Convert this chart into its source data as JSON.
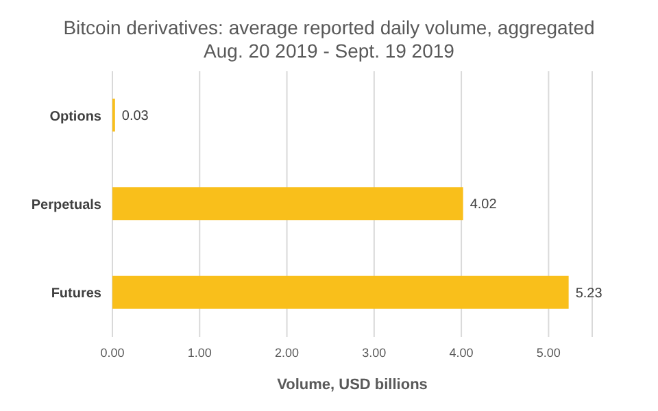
{
  "chart_data": {
    "type": "bar",
    "orientation": "horizontal",
    "title": "Bitcoin derivatives: average reported daily volume, aggregated",
    "subtitle": "Aug. 20 2019 - Sept. 19 2019",
    "xlabel": "Volume, USD billions",
    "categories": [
      "Options",
      "Perpetuals",
      "Futures"
    ],
    "values": [
      0.03,
      4.02,
      5.23
    ],
    "color": "#f9bf1b",
    "data_labels": true,
    "xlim": [
      0,
      5.5
    ],
    "xticks": [
      {
        "value": 0,
        "label": "0.00"
      },
      {
        "value": 1,
        "label": "1.00"
      },
      {
        "value": 2,
        "label": "2.00"
      },
      {
        "value": 3,
        "label": "3.00"
      },
      {
        "value": 4,
        "label": "4.00"
      },
      {
        "value": 5,
        "label": "5.00"
      }
    ],
    "grid": "x"
  }
}
